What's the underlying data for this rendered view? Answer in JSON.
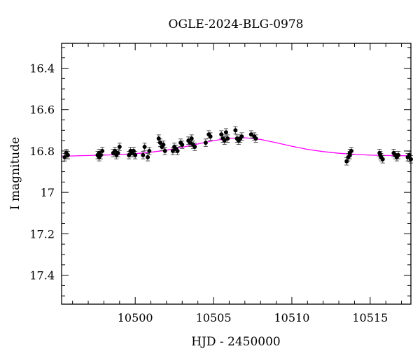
{
  "chart_data": {
    "type": "scatter",
    "title": "OGLE-2024-BLG-0978",
    "xlabel": "HJD - 2450000",
    "ylabel": "I magnitude",
    "xlim": [
      10495.3,
      10517.6
    ],
    "ylim": [
      17.54,
      16.28
    ],
    "y_inverted": true,
    "x_ticks": [
      10500,
      10505,
      10510,
      10515
    ],
    "y_ticks": [
      16.4,
      16.6,
      16.8,
      17,
      17.2,
      17.4
    ],
    "x_tick_labels": [
      "10500",
      "10505",
      "10510",
      "10515"
    ],
    "y_tick_labels": [
      "16.4",
      "16.6",
      "16.8",
      "17",
      "17.2",
      "17.4"
    ],
    "grid": false,
    "colors": {
      "points": "#000000",
      "model": "#ff00ff",
      "errorbars": "#555555"
    },
    "series": [
      {
        "kind": "points",
        "x": [
          10495.5,
          10495.6,
          10495.7,
          10497.6,
          10497.7,
          10497.8,
          10497.9,
          10497.7,
          10498.6,
          10498.7,
          10498.8,
          10498.9,
          10499.0,
          10499.6,
          10499.7,
          10499.8,
          10499.9,
          10500.0,
          10500.5,
          10500.6,
          10500.8,
          10500.9,
          10501.5,
          10501.6,
          10501.7,
          10501.8,
          10501.9,
          10502.4,
          10502.5,
          10502.6,
          10502.7,
          10502.9,
          10503.0,
          10503.4,
          10503.5,
          10503.6,
          10503.7,
          10503.8,
          10504.5,
          10504.7,
          10504.8,
          10505.5,
          10505.6,
          10505.7,
          10505.8,
          10505.9,
          10506.4,
          10506.5,
          10506.6,
          10506.7,
          10506.8,
          10507.4,
          10507.6,
          10507.7,
          10513.5,
          10513.6,
          10513.7,
          10513.8,
          10513.7,
          10515.6,
          10515.7,
          10515.8,
          10515.65,
          10516.5,
          10516.6,
          10516.7,
          10516.8,
          10517.4,
          10517.5,
          10517.6
        ],
        "y": [
          16.83,
          16.81,
          16.82,
          16.82,
          16.81,
          16.82,
          16.8,
          16.83,
          16.81,
          16.8,
          16.82,
          16.81,
          16.78,
          16.82,
          16.8,
          16.81,
          16.8,
          16.82,
          16.82,
          16.78,
          16.83,
          16.8,
          16.74,
          16.76,
          16.78,
          16.77,
          16.8,
          16.8,
          16.78,
          16.79,
          16.8,
          16.76,
          16.77,
          16.75,
          16.76,
          16.74,
          16.77,
          16.78,
          16.76,
          16.72,
          16.73,
          16.72,
          16.74,
          16.75,
          16.71,
          16.74,
          16.7,
          16.74,
          16.75,
          16.74,
          16.73,
          16.72,
          16.73,
          16.74,
          16.85,
          16.83,
          16.82,
          16.8,
          16.81,
          16.81,
          16.83,
          16.84,
          16.82,
          16.81,
          16.82,
          16.83,
          16.82,
          16.83,
          16.82,
          16.84
        ]
      },
      {
        "kind": "model",
        "x": [
          10495.3,
          10496,
          10497,
          10498,
          10499,
          10500,
          10501,
          10502,
          10503,
          10504,
          10505,
          10506,
          10507,
          10508,
          10509,
          10510,
          10511,
          10512,
          10513,
          10514,
          10515,
          10516,
          10517,
          10517.6
        ],
        "y": [
          16.825,
          16.824,
          16.822,
          16.82,
          16.817,
          16.813,
          16.806,
          16.796,
          16.782,
          16.766,
          16.75,
          16.739,
          16.736,
          16.744,
          16.76,
          16.777,
          16.792,
          16.803,
          16.811,
          16.816,
          16.82,
          16.822,
          16.823,
          16.823
        ]
      }
    ]
  }
}
